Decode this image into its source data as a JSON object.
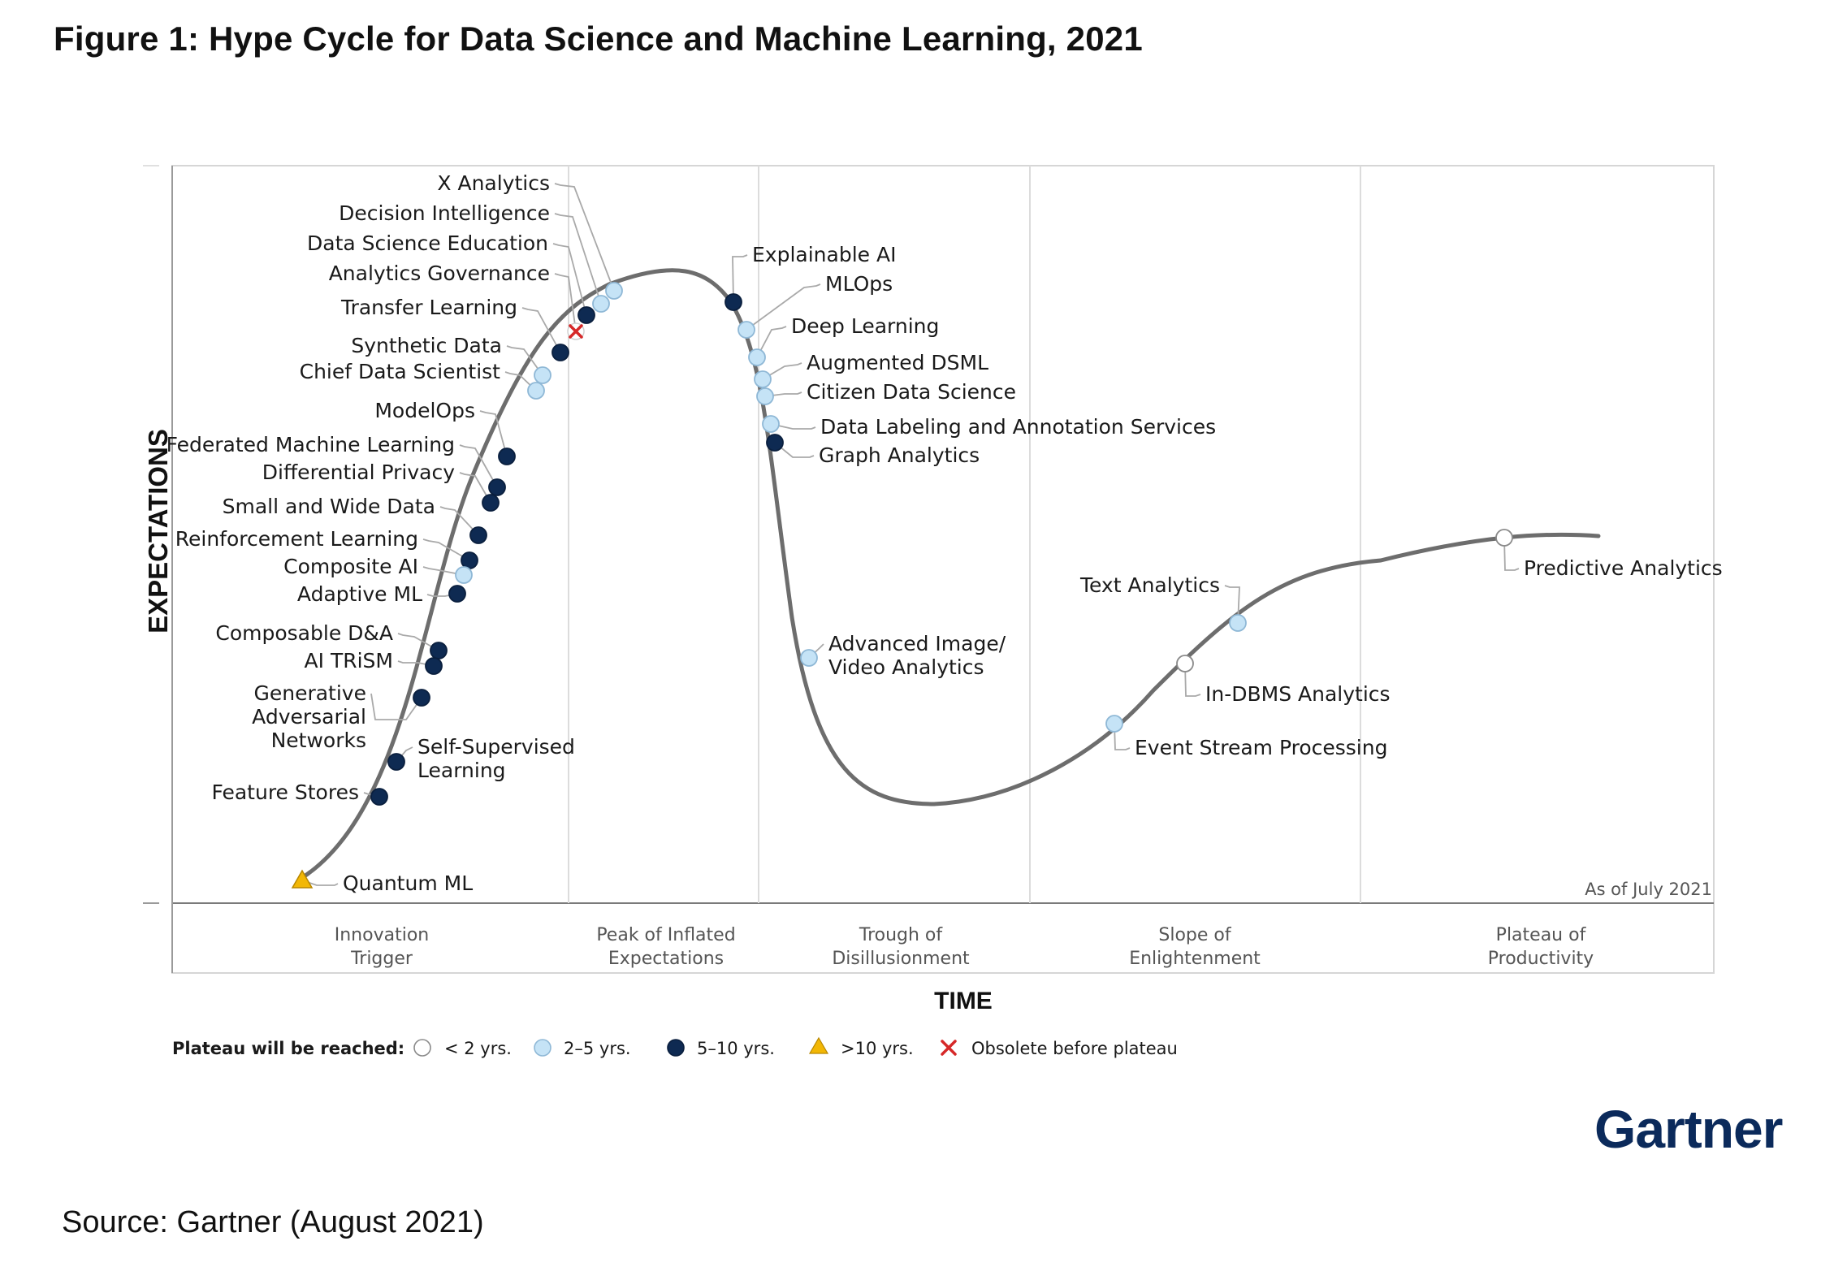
{
  "title": "Figure 1: Hype Cycle for Data Science and Machine Learning, 2021",
  "source": "Source: Gartner (August 2021)",
  "brand": "Gartner",
  "as_of": "As of July 2021",
  "y_axis_label": "EXPECTATIONS",
  "x_axis_label": "TIME",
  "phases": [
    {
      "lines": [
        "Innovation",
        "Trigger"
      ]
    },
    {
      "lines": [
        "Peak of Inflated",
        "Expectations"
      ]
    },
    {
      "lines": [
        "Trough of",
        "Disillusionment"
      ]
    },
    {
      "lines": [
        "Slope of",
        "Enlightenment"
      ]
    },
    {
      "lines": [
        "Plateau of",
        "Productivity"
      ]
    }
  ],
  "legend": {
    "title": "Plateau will be reached:",
    "items": [
      {
        "key": "lt2",
        "label": "< 2 yrs."
      },
      {
        "key": "2to5",
        "label": "2–5 yrs."
      },
      {
        "key": "5to10",
        "label": "5–10 yrs."
      },
      {
        "key": "gt10",
        "label": ">10 yrs."
      },
      {
        "key": "obsolete",
        "label": "Obsolete before plateau"
      }
    ]
  },
  "colors": {
    "lt2": "#ffffff",
    "2to5": "#c5e3f6",
    "5to10": "#0e2a52",
    "gt10": "#f2b705",
    "obsolete": "#d62828",
    "curve": "#6d6d6d",
    "brand": "#0b2a5b"
  },
  "technologies": [
    {
      "name": [
        "X Analytics"
      ],
      "t": "2to5"
    },
    {
      "name": [
        "Decision Intelligence"
      ],
      "t": "2to5"
    },
    {
      "name": [
        "Data Science Education"
      ],
      "t": "5to10"
    },
    {
      "name": [
        "Analytics Governance"
      ],
      "t": "obsolete"
    },
    {
      "name": [
        "Transfer Learning"
      ],
      "t": "5to10"
    },
    {
      "name": [
        "Synthetic Data"
      ],
      "t": "2to5"
    },
    {
      "name": [
        "Chief Data Scientist"
      ],
      "t": "2to5"
    },
    {
      "name": [
        "ModelOps"
      ],
      "t": "5to10"
    },
    {
      "name": [
        "Federated Machine Learning"
      ],
      "t": "5to10"
    },
    {
      "name": [
        "Differential Privacy"
      ],
      "t": "5to10"
    },
    {
      "name": [
        "Small and Wide Data"
      ],
      "t": "5to10"
    },
    {
      "name": [
        "Reinforcement Learning"
      ],
      "t": "5to10"
    },
    {
      "name": [
        "Composite AI"
      ],
      "t": "2to5"
    },
    {
      "name": [
        "Adaptive ML"
      ],
      "t": "5to10"
    },
    {
      "name": [
        "Composable D&A"
      ],
      "t": "5to10"
    },
    {
      "name": [
        "AI TRiSM"
      ],
      "t": "5to10"
    },
    {
      "name": [
        "Generative",
        "Adversarial",
        "Networks"
      ],
      "t": "5to10"
    },
    {
      "name": [
        "Self-Supervised",
        "Learning"
      ],
      "t": "5to10"
    },
    {
      "name": [
        "Feature Stores"
      ],
      "t": "5to10"
    },
    {
      "name": [
        "Quantum ML"
      ],
      "t": "gt10"
    },
    {
      "name": [
        "Explainable AI"
      ],
      "t": "5to10"
    },
    {
      "name": [
        "MLOps"
      ],
      "t": "2to5"
    },
    {
      "name": [
        "Deep Learning"
      ],
      "t": "2to5"
    },
    {
      "name": [
        "Augmented DSML"
      ],
      "t": "2to5"
    },
    {
      "name": [
        "Citizen Data Science"
      ],
      "t": "2to5"
    },
    {
      "name": [
        "Data Labeling and Annotation Services"
      ],
      "t": "2to5"
    },
    {
      "name": [
        "Graph Analytics"
      ],
      "t": "5to10"
    },
    {
      "name": [
        "Advanced Image/",
        "Video Analytics"
      ],
      "t": "2to5"
    },
    {
      "name": [
        "Text Analytics"
      ],
      "t": "2to5"
    },
    {
      "name": [
        "In-DBMS Analytics"
      ],
      "t": "lt2"
    },
    {
      "name": [
        "Event Stream Processing"
      ],
      "t": "2to5"
    },
    {
      "name": [
        "Predictive Analytics"
      ],
      "t": "lt2"
    }
  ]
}
